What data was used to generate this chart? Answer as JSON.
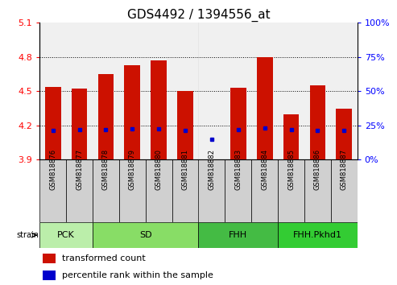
{
  "title": "GDS4492 / 1394556_at",
  "samples": [
    "GSM818876",
    "GSM818877",
    "GSM818878",
    "GSM818879",
    "GSM818880",
    "GSM818881",
    "GSM818882",
    "GSM818883",
    "GSM818884",
    "GSM818885",
    "GSM818886",
    "GSM818887"
  ],
  "bar_tops": [
    4.54,
    4.52,
    4.65,
    4.73,
    4.77,
    4.5,
    3.905,
    4.53,
    4.8,
    4.3,
    4.55,
    4.35
  ],
  "blue_dots": [
    4.155,
    4.165,
    4.165,
    4.17,
    4.17,
    4.155,
    4.075,
    4.165,
    4.175,
    4.165,
    4.155,
    4.155
  ],
  "bar_baseline": 3.9,
  "ymin": 3.9,
  "ymax": 5.1,
  "yticks_left": [
    3.9,
    4.2,
    4.5,
    4.8,
    5.1
  ],
  "yticks_right": [
    0,
    25,
    50,
    75,
    100
  ],
  "bar_color": "#cc1100",
  "dot_color": "#0000cc",
  "groups_data": [
    {
      "label": "PCK",
      "indices": [
        0,
        1
      ],
      "color": "#bbeeaa"
    },
    {
      "label": "SD",
      "indices": [
        2,
        3,
        4,
        5
      ],
      "color": "#88dd66"
    },
    {
      "label": "FHH",
      "indices": [
        6,
        7,
        8
      ],
      "color": "#44bb44"
    },
    {
      "label": "FHH.Pkhd1",
      "indices": [
        9,
        10,
        11
      ],
      "color": "#33cc33"
    }
  ],
  "sample_bg_color": "#d0d0d0",
  "title_fontsize": 11,
  "tick_fontsize": 8,
  "sample_fontsize": 6,
  "group_fontsize": 8,
  "legend_fontsize": 8
}
